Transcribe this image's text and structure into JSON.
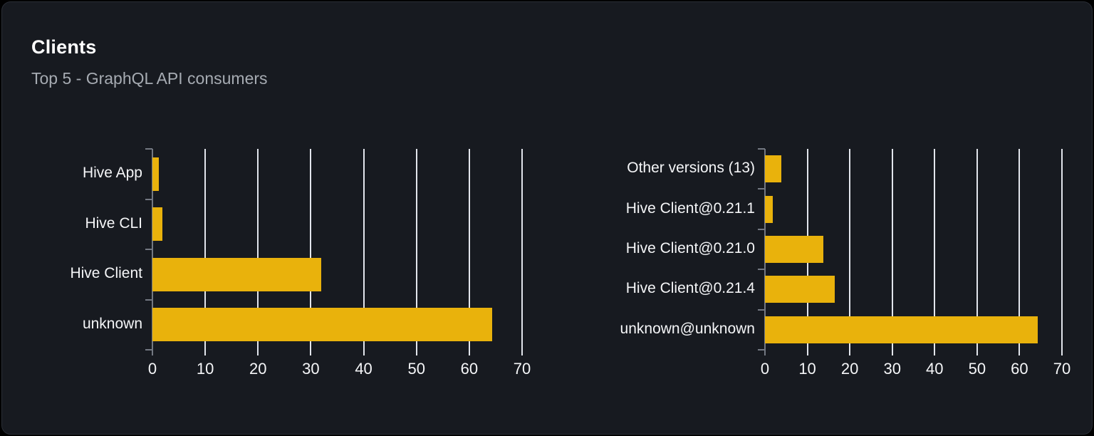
{
  "card": {
    "title": "Clients",
    "subtitle": "Top 5 - GraphQL API consumers"
  },
  "theme": {
    "page_background": "#000000",
    "card_background": "#171a20",
    "card_border": "#2a2e36",
    "title_color": "#ffffff",
    "subtitle_color": "#a6abb2",
    "label_color": "#f5f6f8",
    "gridline_color": "#e2e5ec",
    "axis_color": "#737882",
    "bar_color": "#e9b20c"
  },
  "chart_data": [
    {
      "type": "bar",
      "orientation": "horizontal",
      "categories": [
        "Hive App",
        "Hive CLI",
        "Hive Client",
        "unknown"
      ],
      "values": [
        1.2,
        1.9,
        32,
        64.3
      ],
      "xlim": [
        0,
        70
      ],
      "xticks": [
        0,
        10,
        20,
        30,
        40,
        50,
        60,
        70
      ],
      "grid": true,
      "legend": "none",
      "bar_color": "#e9b20c"
    },
    {
      "type": "bar",
      "orientation": "horizontal",
      "categories": [
        "Other versions (13)",
        "Hive Client@0.21.1",
        "Hive Client@0.21.0",
        "Hive Client@0.21.4",
        "unknown@unknown"
      ],
      "values": [
        3.9,
        1.9,
        13.8,
        16.5,
        64.3
      ],
      "xlim": [
        0,
        70
      ],
      "xticks": [
        0,
        10,
        20,
        30,
        40,
        50,
        60,
        70
      ],
      "grid": true,
      "legend": "none",
      "bar_color": "#e9b20c"
    }
  ]
}
